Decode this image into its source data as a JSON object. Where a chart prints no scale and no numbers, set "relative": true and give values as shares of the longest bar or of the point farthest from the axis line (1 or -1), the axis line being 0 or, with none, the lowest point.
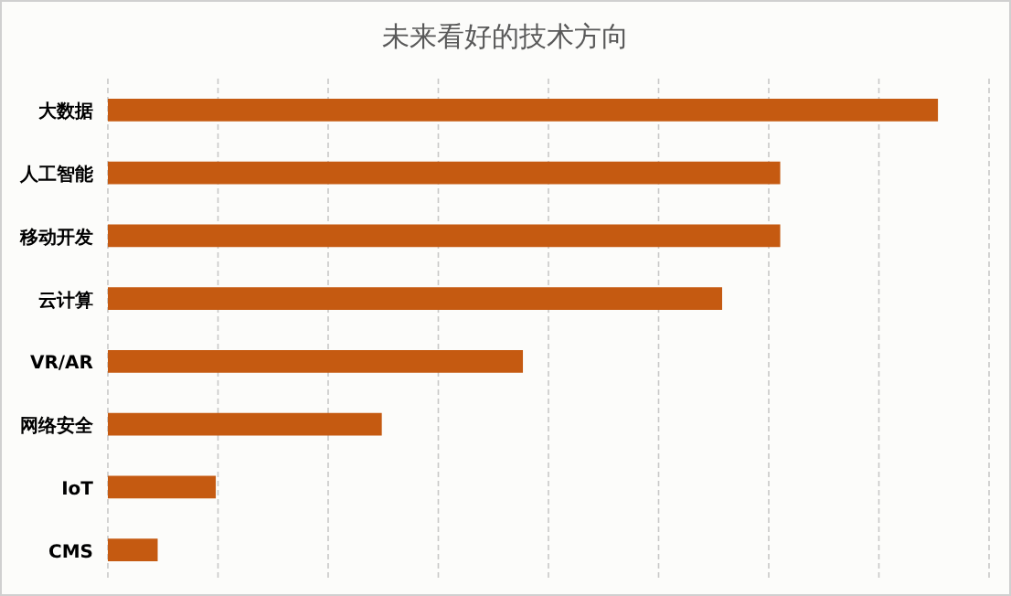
{
  "chart_data": {
    "type": "bar",
    "orientation": "horizontal",
    "relative": true,
    "title": "未来看好的技术方向",
    "categories": [
      "大数据",
      "人工智能",
      "移动开发",
      "云计算",
      "VR/AR",
      "网络安全",
      "IoT",
      "CMS"
    ],
    "values": [
      1,
      0.81,
      0.81,
      0.74,
      0.5,
      0.33,
      0.13,
      0.06
    ],
    "color": "#c55a11",
    "grid": "x"
  }
}
